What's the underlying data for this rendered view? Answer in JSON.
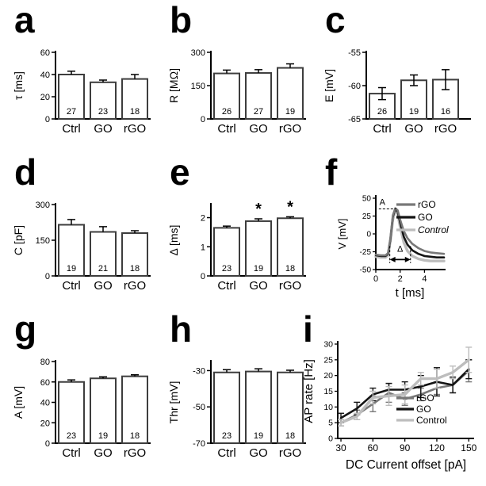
{
  "chart_data": [
    {
      "id": "a",
      "letter": "a",
      "type": "bar",
      "ylabel": "τ [ms]",
      "ylim": [
        0,
        60
      ],
      "yticks": [
        0,
        20,
        40,
        60
      ],
      "categories": [
        "Ctrl",
        "GO",
        "rGO"
      ],
      "values": [
        40,
        33,
        36
      ],
      "errors": [
        3,
        2,
        4
      ],
      "counts": [
        27,
        23,
        18
      ],
      "sig": [
        false,
        false,
        false
      ],
      "error_two_sided": false
    },
    {
      "id": "b",
      "letter": "b",
      "type": "bar",
      "ylabel": "R [MΩ]",
      "ylim": [
        0,
        300
      ],
      "yticks": [
        0,
        150,
        300
      ],
      "categories": [
        "Ctrl",
        "GO",
        "rGO"
      ],
      "values": [
        205,
        207,
        230
      ],
      "errors": [
        15,
        15,
        18
      ],
      "counts": [
        26,
        27,
        19
      ],
      "sig": [
        false,
        false,
        false
      ],
      "error_two_sided": false
    },
    {
      "id": "c",
      "letter": "c",
      "type": "bar",
      "ylabel": "E [mV]",
      "ylim": [
        -65,
        -55
      ],
      "yticks": [
        -65,
        -60,
        -55
      ],
      "categories": [
        "Ctrl",
        "GO",
        "rGO"
      ],
      "values": [
        -61.2,
        -59.2,
        -59.1
      ],
      "errors": [
        0.9,
        0.8,
        1.5
      ],
      "counts": [
        26,
        19,
        16
      ],
      "sig": [
        false,
        false,
        false
      ],
      "error_two_sided": true
    },
    {
      "id": "d",
      "letter": "d",
      "type": "bar",
      "ylabel": "C [pF]",
      "ylim": [
        0,
        300
      ],
      "yticks": [
        0,
        150,
        300
      ],
      "categories": [
        "Ctrl",
        "GO",
        "rGO"
      ],
      "values": [
        215,
        185,
        180
      ],
      "errors": [
        22,
        22,
        10
      ],
      "counts": [
        19,
        21,
        18
      ],
      "sig": [
        false,
        false,
        false
      ],
      "error_two_sided": false
    },
    {
      "id": "e",
      "letter": "e",
      "type": "bar",
      "ylabel": "Δ [ms]",
      "ylim": [
        0,
        2.45
      ],
      "yticks": [
        0,
        1,
        2
      ],
      "categories": [
        "Ctrl",
        "GO",
        "rGO"
      ],
      "values": [
        1.65,
        1.88,
        1.98
      ],
      "errors": [
        0.06,
        0.08,
        0.05
      ],
      "counts": [
        23,
        19,
        18
      ],
      "sig": [
        false,
        true,
        true
      ],
      "error_two_sided": false
    },
    {
      "id": "f",
      "letter": "f",
      "type": "line",
      "variant": "ap-trace",
      "ylabel": "V [mV]",
      "xlabel": "t [ms]",
      "ylim": [
        -50,
        50
      ],
      "xlim": [
        0,
        5.6
      ],
      "yticks": [
        -50,
        -25,
        0,
        25,
        50
      ],
      "xticks": [
        0,
        2,
        4
      ],
      "t": [
        0,
        0.4,
        0.8,
        1.0,
        1.2,
        1.4,
        1.6,
        1.8,
        2.0,
        2.3,
        2.6,
        3.0,
        3.5,
        4.0,
        4.5,
        5.0,
        5.6
      ],
      "series": [
        {
          "name": "rGO",
          "color": "#787878",
          "width": 2.6,
          "italic": false,
          "v": [
            -29,
            -30,
            -30,
            -27,
            -6,
            26,
            36,
            33,
            20,
            4,
            -6,
            -14,
            -20,
            -24,
            -26,
            -27,
            -28
          ]
        },
        {
          "name": "GO",
          "color": "#141414",
          "width": 2.6,
          "italic": false,
          "v": [
            -30,
            -31,
            -31,
            -28,
            -8,
            24,
            35,
            31,
            16,
            -4,
            -15,
            -23,
            -28,
            -31,
            -32,
            -33,
            -33
          ]
        },
        {
          "name": "Control",
          "color": "#bdbdbd",
          "width": 3.4,
          "italic": true,
          "v": [
            -32,
            -33,
            -33,
            -30,
            -10,
            20,
            33,
            28,
            10,
            -12,
            -24,
            -31,
            -35,
            -37,
            -38,
            -38,
            -38
          ]
        }
      ],
      "annotations": {
        "amplitude_label": "A",
        "width_label": "Δ",
        "peak_level_mv": 35,
        "width_span_ms": [
          1.15,
          2.85
        ]
      }
    },
    {
      "id": "g",
      "letter": "g",
      "type": "bar",
      "ylabel": "A [mV]",
      "ylim": [
        0,
        80
      ],
      "yticks": [
        0,
        20,
        40,
        60,
        80
      ],
      "categories": [
        "Ctrl",
        "GO",
        "rGO"
      ],
      "values": [
        60,
        63.5,
        65.5
      ],
      "errors": [
        2,
        1.5,
        1.5
      ],
      "counts": [
        23,
        19,
        18
      ],
      "sig": [
        false,
        false,
        false
      ],
      "error_two_sided": false
    },
    {
      "id": "h",
      "letter": "h",
      "type": "bar",
      "ylabel": "Thr [mV]",
      "ylim": [
        -70,
        -25
      ],
      "yticks": [
        -70,
        -50,
        -30
      ],
      "categories": [
        "Ctrl",
        "GO",
        "rGO"
      ],
      "values": [
        -31,
        -30.5,
        -31
      ],
      "errors": [
        1.5,
        1.5,
        1.2
      ],
      "counts": [
        23,
        19,
        18
      ],
      "sig": [
        false,
        false,
        false
      ],
      "error_two_sided": false
    },
    {
      "id": "i",
      "letter": "i",
      "type": "line",
      "variant": "fi-curve",
      "ylabel": "AP rate [Hz]",
      "xlabel": "DC Current offset [pA]",
      "ylim": [
        0,
        30
      ],
      "xlim": [
        27,
        155
      ],
      "yticks": [
        0,
        5,
        10,
        15,
        20,
        25,
        30
      ],
      "xticks": [
        30,
        60,
        90,
        120,
        150
      ],
      "x": [
        30,
        45,
        60,
        75,
        90,
        105,
        120,
        135,
        150
      ],
      "series": [
        {
          "name": "rGO",
          "color": "#787878",
          "width": 2.6,
          "italic": false,
          "values": [
            5,
            7.5,
            11,
            14.5,
            12.5,
            14,
            16,
            17,
            21.5
          ],
          "errors": [
            1,
            1.5,
            2.5,
            3,
            2,
            2,
            2,
            2.5,
            3.5
          ]
        },
        {
          "name": "GO",
          "color": "#141414",
          "width": 2.6,
          "italic": false,
          "values": [
            6.5,
            9.5,
            14,
            15.5,
            15.5,
            16.5,
            18,
            17,
            22
          ],
          "errors": [
            1.5,
            2,
            2,
            2,
            2.5,
            3.5,
            4.5,
            2.5,
            3
          ]
        },
        {
          "name": "Control",
          "color": "#bdbdbd",
          "width": 3.4,
          "italic": false,
          "values": [
            5,
            7,
            13,
            13.5,
            14,
            19,
            19,
            21,
            25
          ],
          "errors": [
            1,
            1,
            2,
            3,
            3,
            2,
            3,
            2,
            4
          ]
        }
      ]
    }
  ],
  "style_colors": {
    "bar_fill": "#ffffff",
    "bar_border": "#3d3d3d",
    "axis": "#000000",
    "rgo": "#787878",
    "go": "#141414",
    "control": "#bdbdbd"
  }
}
